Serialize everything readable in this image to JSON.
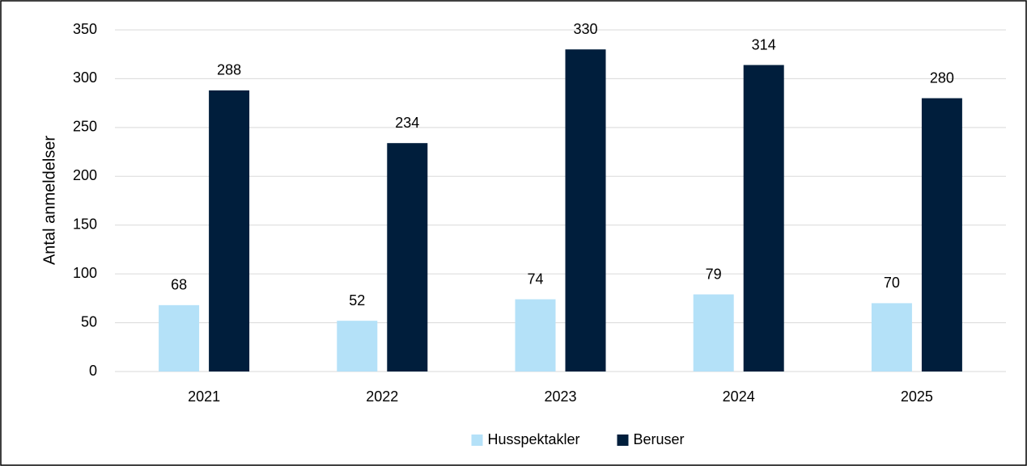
{
  "chart_data": {
    "type": "bar",
    "ylabel": "Antal anmeldelser",
    "categories": [
      "2021",
      "2022",
      "2023",
      "2024",
      "2025"
    ],
    "series": [
      {
        "name": "Husspektakler",
        "color": "#b4e1f8",
        "values": [
          68,
          52,
          74,
          79,
          70
        ]
      },
      {
        "name": "Beruser",
        "color": "#001e3c",
        "values": [
          288,
          234,
          330,
          314,
          280
        ]
      }
    ],
    "ylim": [
      0,
      350
    ],
    "yticks": [
      0,
      50,
      100,
      150,
      200,
      250,
      300,
      350
    ],
    "grid": true,
    "legend": "bottom"
  }
}
